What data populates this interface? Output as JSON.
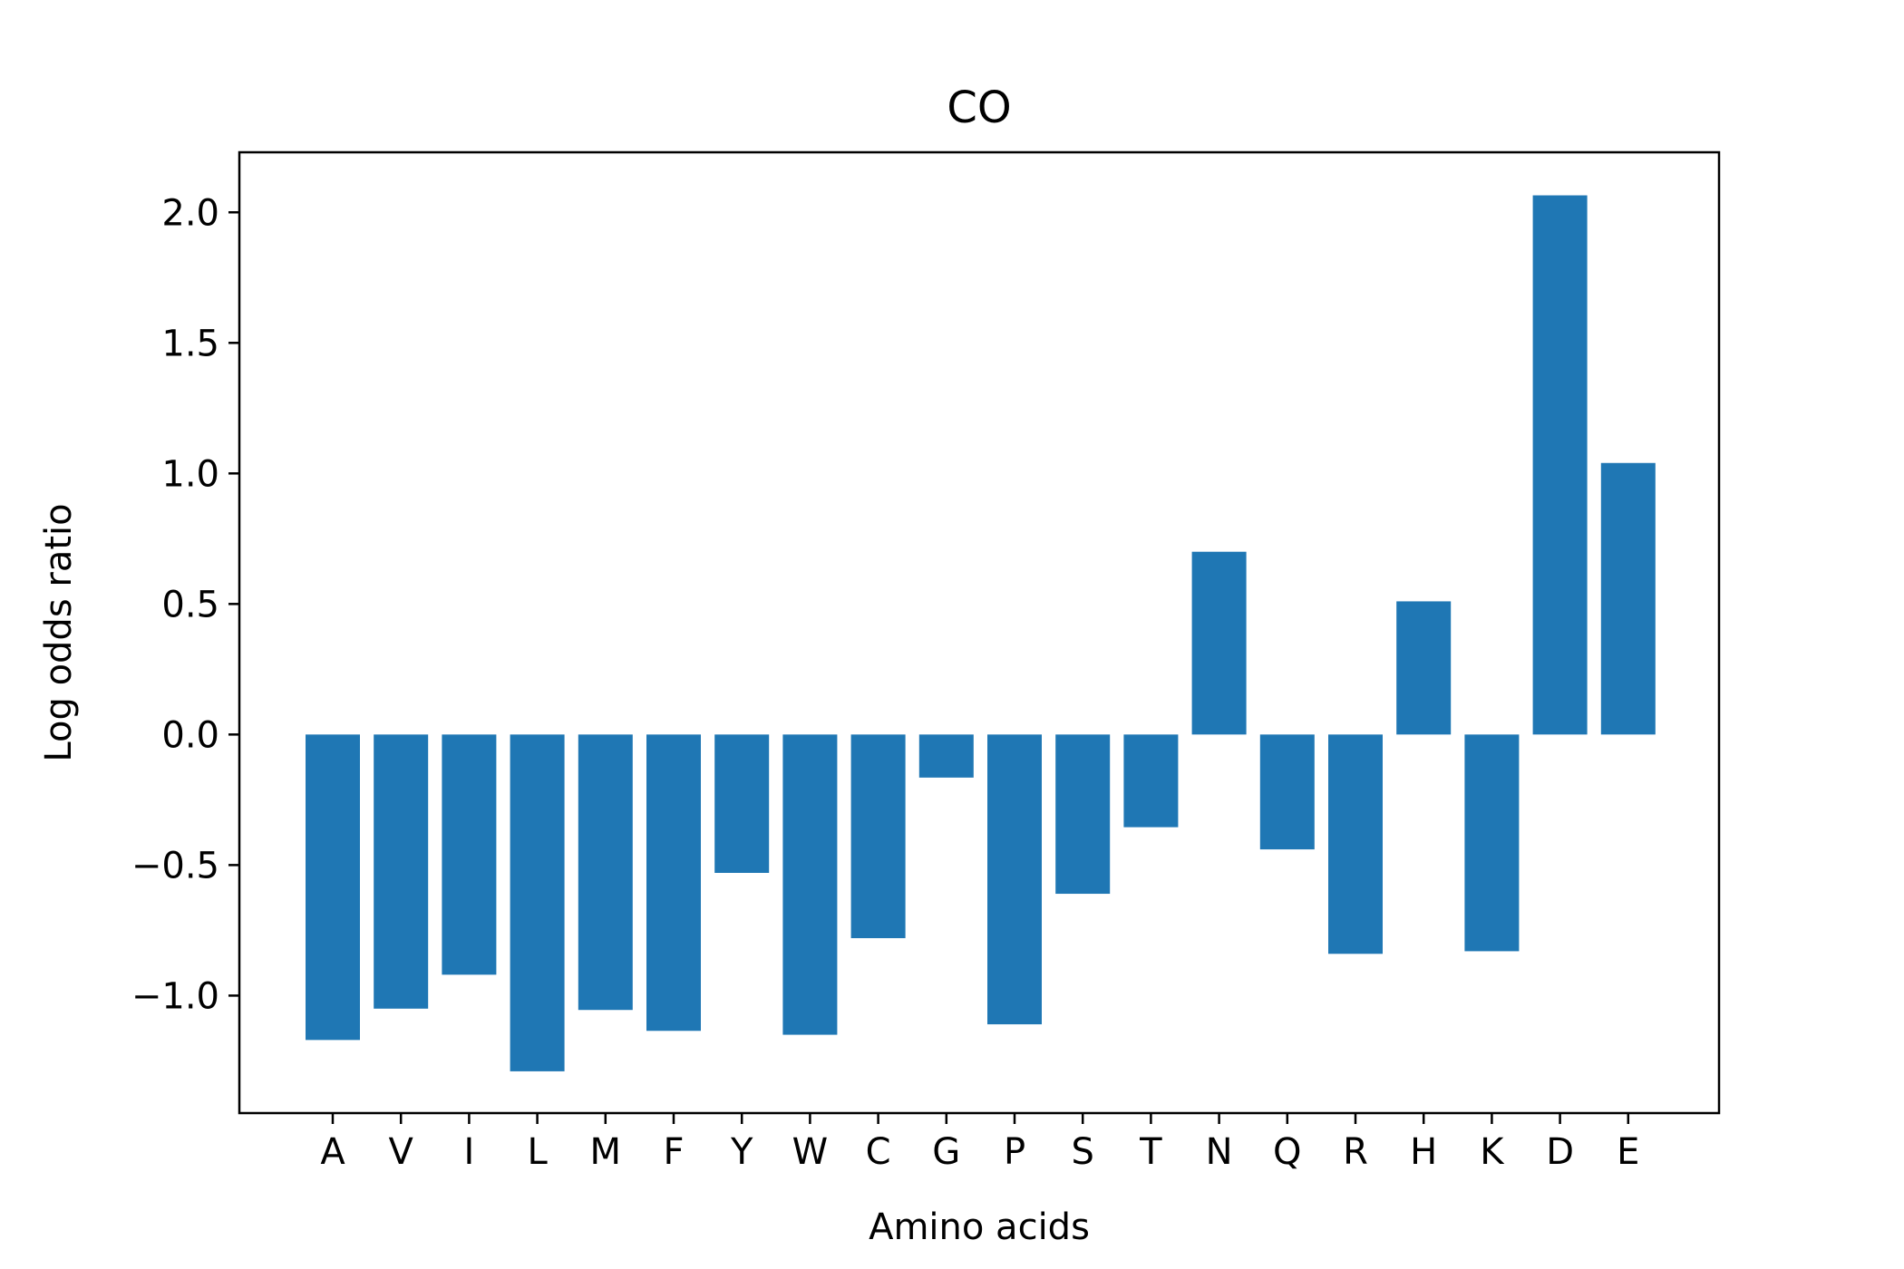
{
  "chart_data": {
    "type": "bar",
    "title": "CO",
    "xlabel": "Amino acids",
    "ylabel": "Log odds ratio",
    "categories": [
      "A",
      "V",
      "I",
      "L",
      "M",
      "F",
      "Y",
      "W",
      "C",
      "G",
      "P",
      "S",
      "T",
      "N",
      "Q",
      "R",
      "H",
      "K",
      "D",
      "E"
    ],
    "values": [
      -1.17,
      -1.05,
      -0.92,
      -1.29,
      -1.055,
      -1.135,
      -0.53,
      -1.15,
      -0.78,
      -0.165,
      -1.11,
      -0.61,
      -0.355,
      0.7,
      -0.44,
      -0.84,
      0.51,
      -0.83,
      2.065,
      1.04
    ],
    "ylim": [
      -1.45,
      2.23
    ],
    "yticks": [
      2.0,
      1.5,
      1.0,
      0.5,
      0.0,
      -0.5,
      -1.0
    ],
    "ytick_labels": [
      "2.0",
      "1.5",
      "1.0",
      "0.5",
      "0.0",
      "−0.5",
      "−1.0"
    ],
    "bar_color": "#1f77b4",
    "grid": false,
    "legend": "none"
  }
}
